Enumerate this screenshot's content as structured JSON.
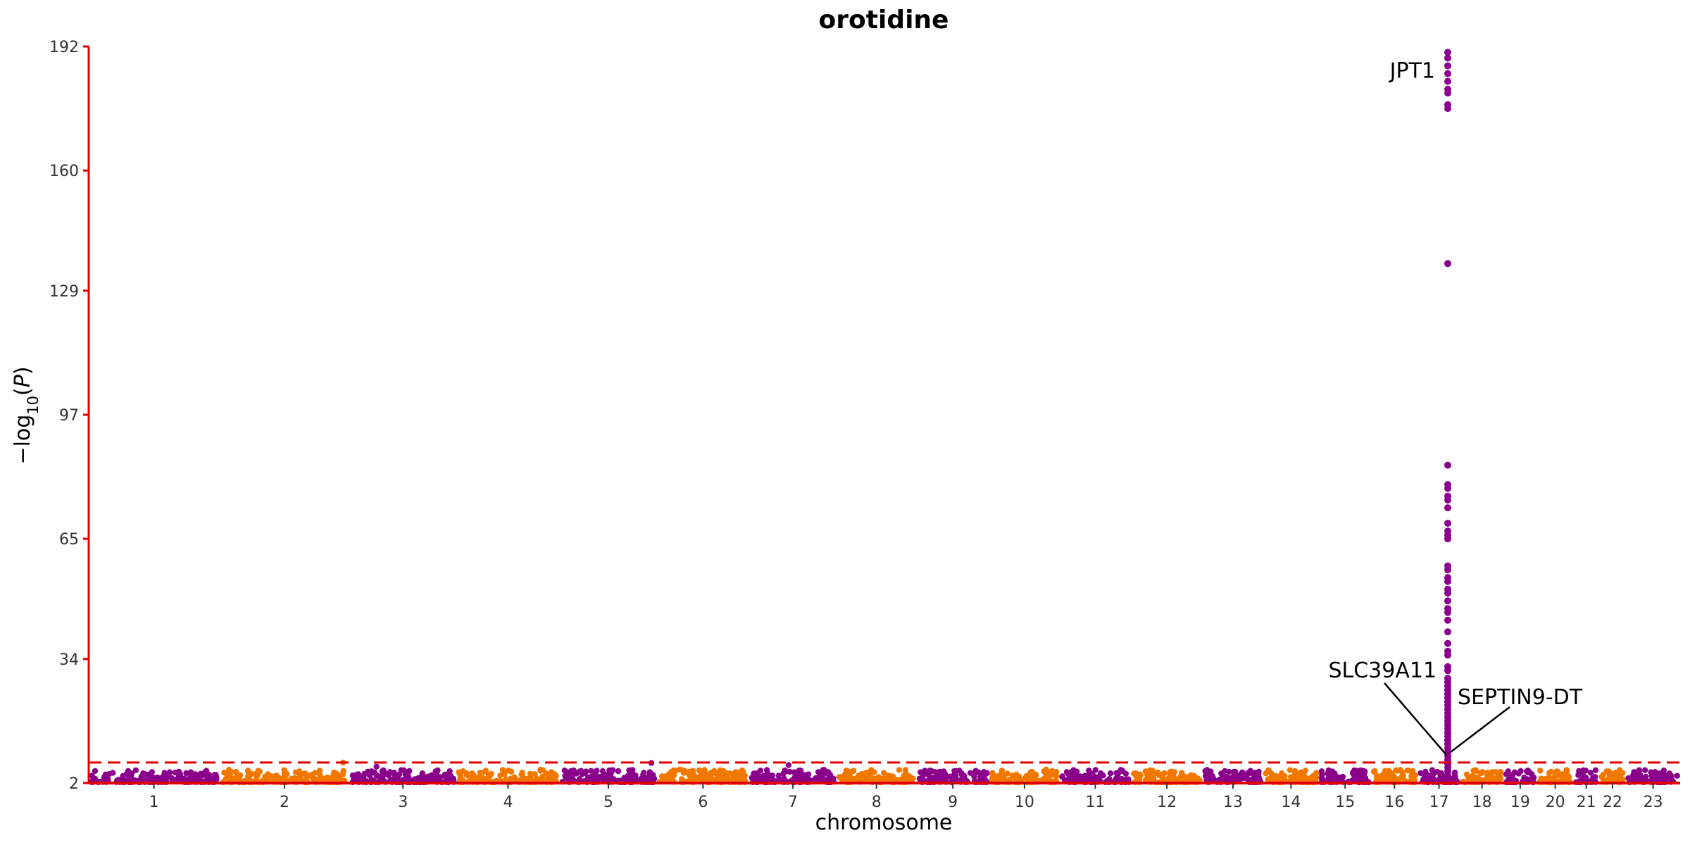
{
  "chart_data": {
    "type": "scatter",
    "subtype": "manhattan",
    "title": "orotidine",
    "xlabel": "chromosome",
    "ylabel": "−log10(P)",
    "ylim": [
      2,
      192
    ],
    "yticks": [
      2,
      34,
      65,
      97,
      129,
      160,
      192
    ],
    "threshold": 7.3,
    "colors": {
      "odd": "#8B008B",
      "even": "#F07800",
      "axis": "#E00000",
      "threshold": "#E00000",
      "tick_text": "#333333"
    },
    "grid": false,
    "chromosomes": [
      {
        "label": "1",
        "start": 0.0,
        "end": 8.2
      },
      {
        "label": "2",
        "start": 8.2,
        "end": 16.4
      },
      {
        "label": "3",
        "start": 16.4,
        "end": 23.1
      },
      {
        "label": "4",
        "start": 23.1,
        "end": 29.6
      },
      {
        "label": "5",
        "start": 29.6,
        "end": 35.7
      },
      {
        "label": "6",
        "start": 35.7,
        "end": 41.5
      },
      {
        "label": "7",
        "start": 41.5,
        "end": 47.0
      },
      {
        "label": "8",
        "start": 47.0,
        "end": 52.0
      },
      {
        "label": "9",
        "start": 52.0,
        "end": 56.6
      },
      {
        "label": "10",
        "start": 56.6,
        "end": 61.0
      },
      {
        "label": "11",
        "start": 61.0,
        "end": 65.5
      },
      {
        "label": "12",
        "start": 65.5,
        "end": 70.0
      },
      {
        "label": "13",
        "start": 70.0,
        "end": 73.8
      },
      {
        "label": "14",
        "start": 73.8,
        "end": 77.3
      },
      {
        "label": "15",
        "start": 77.3,
        "end": 80.6
      },
      {
        "label": "16",
        "start": 80.6,
        "end": 83.5
      },
      {
        "label": "17",
        "start": 83.5,
        "end": 86.2
      },
      {
        "label": "18",
        "start": 86.2,
        "end": 88.9
      },
      {
        "label": "19",
        "start": 88.9,
        "end": 91.0
      },
      {
        "label": "20",
        "start": 91.0,
        "end": 93.3
      },
      {
        "label": "21",
        "start": 93.3,
        "end": 94.9
      },
      {
        "label": "22",
        "start": 94.9,
        "end": 96.6
      },
      {
        "label": "23",
        "start": 96.6,
        "end": 100.0
      }
    ],
    "peak": {
      "chromosome": "17",
      "x": 85.4,
      "y_values": [
        190.5,
        189,
        187,
        185,
        183,
        181,
        180,
        177,
        176,
        136,
        84,
        79,
        78,
        76,
        75,
        73,
        69,
        67,
        66,
        65,
        58,
        57,
        55,
        54,
        52,
        51,
        49,
        47,
        46,
        44,
        41,
        38,
        36,
        35,
        32,
        31,
        29,
        28,
        27,
        26,
        25,
        24,
        23,
        22,
        21,
        20,
        19,
        18,
        17,
        16,
        15,
        14,
        13,
        12,
        11,
        10,
        9,
        8,
        7,
        6,
        5,
        4,
        3
      ]
    },
    "annotations": [
      {
        "text": "JPT1",
        "x": 85.4,
        "y": 190.5
      },
      {
        "text": "SLC39A11",
        "x": 85.4,
        "y": 10
      },
      {
        "text": "SEPTIN9-DT",
        "x": 85.4,
        "y": 10
      }
    ]
  }
}
